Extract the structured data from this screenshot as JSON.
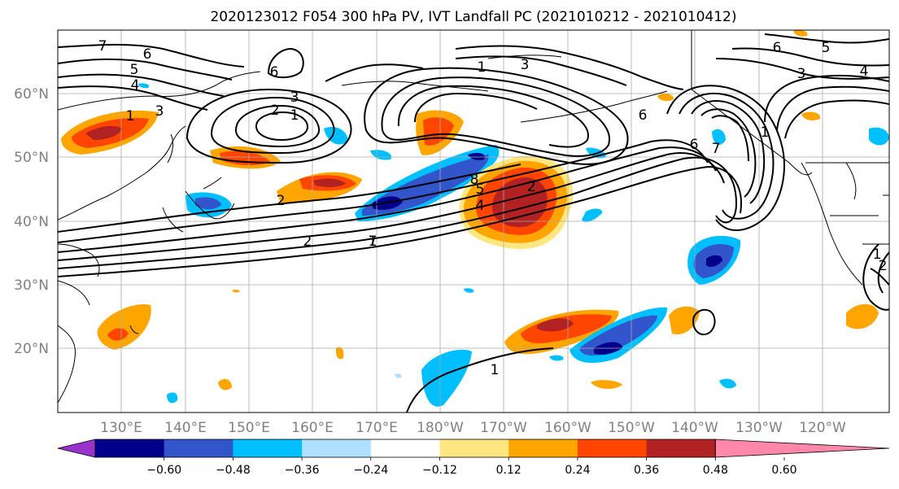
{
  "title": "2020123012 F054 300 hPa PV, IVT Landfall PC (2021010212 - 2021010412)",
  "lat_labels": [
    "60°N",
    "50°N",
    "40°N",
    "30°N",
    "20°N"
  ],
  "lon_labels": [
    "130°E",
    "140°E",
    "150°E",
    "160°E",
    "170°E",
    "180°W",
    "170°W",
    "160°W",
    "150°W",
    "140°W",
    "130°W",
    "120°W"
  ],
  "colorbar": {
    "ticks": [
      "−0.60",
      "−0.48",
      "−0.36",
      "−0.24",
      "−0.12",
      "0.12",
      "0.24",
      "0.36",
      "0.48",
      "0.60"
    ],
    "colors": [
      "#9933cc",
      "#00008b",
      "#3355cc",
      "#00bfff",
      "#b0e0ff",
      "#ffffff",
      "#ffe680",
      "#ffa500",
      "#ff4500",
      "#b22222",
      "#ff88aa"
    ]
  },
  "contour_labels": [
    "7",
    "6",
    "5",
    "4",
    "3",
    "3",
    "2",
    "1",
    "1",
    "2",
    "1",
    "7",
    "6",
    "5",
    "4",
    "3",
    "6",
    "2",
    "1",
    "3",
    "6",
    "8",
    "7",
    "6",
    "5",
    "4",
    "2",
    "1",
    "1",
    "1",
    "2"
  ]
}
